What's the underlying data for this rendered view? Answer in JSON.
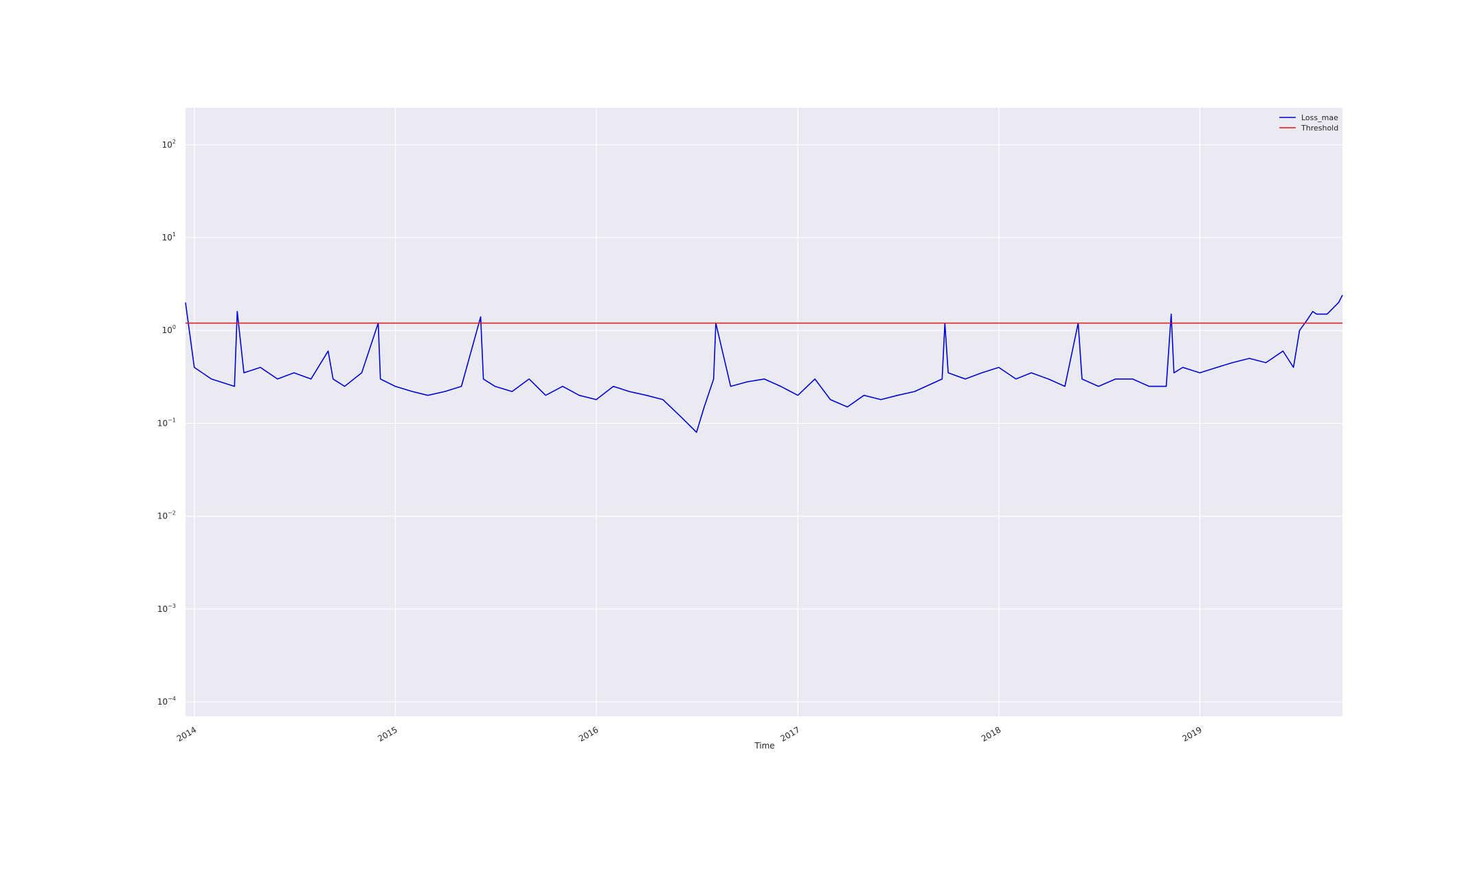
{
  "chart_data": {
    "type": "line",
    "title": "",
    "xlabel": "Time",
    "ylabel": "",
    "y_scale": "log",
    "ylim": [
      7e-05,
      250
    ],
    "xlim": [
      "2013-12-16",
      "2019-09-17"
    ],
    "y_ticks": [
      {
        "value": 0.0001,
        "exp": "−4"
      },
      {
        "value": 0.001,
        "exp": "−3"
      },
      {
        "value": 0.01,
        "exp": "−2"
      },
      {
        "value": 0.1,
        "exp": "−1"
      },
      {
        "value": 1,
        "exp": "0"
      },
      {
        "value": 10,
        "exp": "1"
      },
      {
        "value": 100,
        "exp": "2"
      }
    ],
    "y_tick_base": "10",
    "x_ticks": [
      {
        "date": "2014-01-01",
        "label": "2014"
      },
      {
        "date": "2015-01-01",
        "label": "2015"
      },
      {
        "date": "2016-01-01",
        "label": "2016"
      },
      {
        "date": "2017-01-01",
        "label": "2017"
      },
      {
        "date": "2018-01-01",
        "label": "2018"
      },
      {
        "date": "2019-01-01",
        "label": "2019"
      }
    ],
    "grid": true,
    "legend_position": "top-right",
    "series": [
      {
        "name": "Loss_mae",
        "color": "#0000dd",
        "x": [
          "2013-12-16",
          "2014-01-01",
          "2014-02-01",
          "2014-03-15",
          "2014-03-20",
          "2014-04-01",
          "2014-05-01",
          "2014-06-01",
          "2014-07-01",
          "2014-08-01",
          "2014-09-01",
          "2014-09-10",
          "2014-10-01",
          "2014-11-01",
          "2014-12-01",
          "2014-12-05",
          "2015-01-01",
          "2015-02-01",
          "2015-03-01",
          "2015-04-01",
          "2015-05-01",
          "2015-06-05",
          "2015-06-10",
          "2015-07-01",
          "2015-08-01",
          "2015-09-01",
          "2015-10-01",
          "2015-11-01",
          "2015-12-01",
          "2016-01-01",
          "2016-02-01",
          "2016-03-01",
          "2016-04-01",
          "2016-05-01",
          "2016-06-01",
          "2016-07-01",
          "2016-07-15",
          "2016-08-01",
          "2016-08-05",
          "2016-09-01",
          "2016-10-01",
          "2016-11-01",
          "2016-12-01",
          "2017-01-01",
          "2017-02-01",
          "2017-03-01",
          "2017-04-01",
          "2017-05-01",
          "2017-06-01",
          "2017-07-01",
          "2017-08-01",
          "2017-09-20",
          "2017-09-25",
          "2017-10-01",
          "2017-11-01",
          "2017-12-01",
          "2018-01-01",
          "2018-02-01",
          "2018-03-01",
          "2018-04-01",
          "2018-05-01",
          "2018-05-25",
          "2018-06-01",
          "2018-07-01",
          "2018-08-01",
          "2018-09-01",
          "2018-10-01",
          "2018-11-01",
          "2018-11-10",
          "2018-11-15",
          "2018-12-01",
          "2019-01-01",
          "2019-02-01",
          "2019-03-01",
          "2019-04-01",
          "2019-05-01",
          "2019-06-01",
          "2019-06-20",
          "2019-07-01",
          "2019-07-15",
          "2019-07-25",
          "2019-08-01",
          "2019-08-20",
          "2019-09-10",
          "2019-09-17"
        ],
        "values": [
          2.0,
          0.4,
          0.3,
          0.25,
          1.6,
          0.35,
          0.4,
          0.3,
          0.35,
          0.3,
          0.6,
          0.3,
          0.25,
          0.35,
          1.2,
          0.3,
          0.25,
          0.22,
          0.2,
          0.22,
          0.25,
          1.4,
          0.3,
          0.25,
          0.22,
          0.3,
          0.2,
          0.25,
          0.2,
          0.18,
          0.25,
          0.22,
          0.2,
          0.18,
          0.12,
          0.08,
          0.15,
          0.3,
          1.2,
          0.25,
          0.28,
          0.3,
          0.25,
          0.2,
          0.3,
          0.18,
          0.15,
          0.2,
          0.18,
          0.2,
          0.22,
          0.3,
          1.2,
          0.35,
          0.3,
          0.35,
          0.4,
          0.3,
          0.35,
          0.3,
          0.25,
          1.2,
          0.3,
          0.25,
          0.3,
          0.3,
          0.25,
          0.25,
          1.5,
          0.35,
          0.4,
          0.35,
          0.4,
          0.45,
          0.5,
          0.45,
          0.6,
          0.4,
          1.0,
          1.3,
          1.6,
          1.5,
          1.5,
          2.0,
          2.4
        ]
      },
      {
        "name": "Threshold",
        "color": "#ee1111",
        "x": [
          "2013-12-16",
          "2019-09-17"
        ],
        "values": [
          1.2,
          1.2
        ]
      }
    ]
  }
}
